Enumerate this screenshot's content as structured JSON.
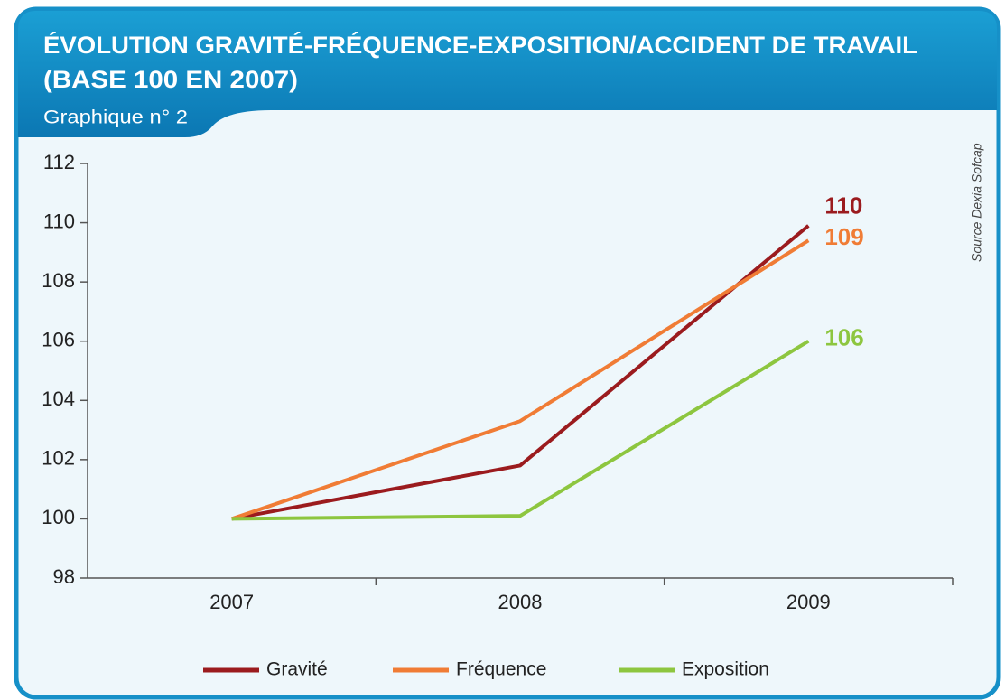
{
  "chart_data": {
    "type": "line",
    "title": [
      "ÉVOLUTION GRAVITÉ-FRÉQUENCE-EXPOSITION/ACCIDENT DE TRAVAIL",
      "(BASE 100 EN 2007)"
    ],
    "subtitle": "Graphique n° 2",
    "source": "Source Dexia Sofcap",
    "categories": [
      "2007",
      "2008",
      "2009"
    ],
    "series": [
      {
        "name": "Gravité",
        "color": "#9b1b1e",
        "values": [
          100,
          101.8,
          109.9
        ],
        "value_labels": [
          null,
          null,
          "110"
        ]
      },
      {
        "name": "Fréquence",
        "color": "#f07c35",
        "values": [
          100,
          103.3,
          109.4
        ],
        "value_labels": [
          null,
          null,
          "109"
        ]
      },
      {
        "name": "Exposition",
        "color": "#8dc63f",
        "values": [
          100,
          100.1,
          106
        ],
        "value_labels": [
          null,
          null,
          "106"
        ]
      }
    ],
    "ylim": [
      98,
      112
    ],
    "yticks": [
      98,
      100,
      102,
      104,
      106,
      108,
      110,
      112
    ],
    "legend": "bottom"
  }
}
